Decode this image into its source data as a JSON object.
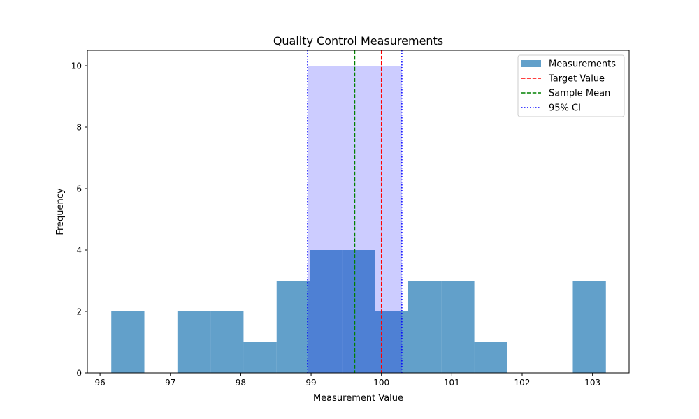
{
  "chart_data": {
    "type": "bar",
    "title": "Quality Control Measurements",
    "xlabel": "Measurement Value",
    "ylabel": "Frequency",
    "xlim": [
      95.82,
      103.52
    ],
    "ylim": [
      0,
      10.5
    ],
    "xticks": [
      96,
      97,
      98,
      99,
      100,
      101,
      102,
      103
    ],
    "yticks": [
      0,
      2,
      4,
      6,
      8,
      10
    ],
    "series": [
      {
        "name": "Measurements",
        "color": "#1f77b4",
        "opacity": 0.7,
        "bins": [
          {
            "x0": 96.16,
            "x1": 96.63,
            "count": 2
          },
          {
            "x0": 96.63,
            "x1": 97.1,
            "count": 0
          },
          {
            "x0": 97.1,
            "x1": 97.57,
            "count": 2
          },
          {
            "x0": 97.57,
            "x1": 98.04,
            "count": 2
          },
          {
            "x0": 98.04,
            "x1": 98.51,
            "count": 1
          },
          {
            "x0": 98.51,
            "x1": 98.98,
            "count": 3
          },
          {
            "x0": 98.98,
            "x1": 99.44,
            "count": 4
          },
          {
            "x0": 99.44,
            "x1": 99.91,
            "count": 4
          },
          {
            "x0": 99.91,
            "x1": 100.38,
            "count": 2
          },
          {
            "x0": 100.38,
            "x1": 100.85,
            "count": 3
          },
          {
            "x0": 100.85,
            "x1": 101.32,
            "count": 3
          },
          {
            "x0": 101.32,
            "x1": 101.79,
            "count": 1
          },
          {
            "x0": 101.79,
            "x1": 102.26,
            "count": 0
          },
          {
            "x0": 102.26,
            "x1": 102.72,
            "count": 0
          },
          {
            "x0": 102.72,
            "x1": 103.19,
            "count": 3
          }
        ]
      }
    ],
    "ci_band": {
      "x0": 98.95,
      "x1": 100.29,
      "height": 10,
      "color": "#0000ff",
      "opacity": 0.2
    },
    "reference_lines": [
      {
        "name": "Target Value",
        "x": 100.0,
        "color": "#ff0000",
        "style": "dashed"
      },
      {
        "name": "Sample Mean",
        "x": 99.62,
        "color": "#008000",
        "style": "dashed"
      },
      {
        "name": "95% CI",
        "x": 98.95,
        "color": "#0000ff",
        "style": "dotted"
      },
      {
        "name": "95% CI",
        "x": 100.29,
        "color": "#0000ff",
        "style": "dotted"
      }
    ],
    "legend": {
      "position": "top-right",
      "entries": [
        {
          "label": "Measurements",
          "kind": "patch",
          "color": "#1f77b4"
        },
        {
          "label": "Target Value",
          "kind": "line",
          "color": "#ff0000",
          "style": "dashed"
        },
        {
          "label": "Sample Mean",
          "kind": "line",
          "color": "#008000",
          "style": "dashed"
        },
        {
          "label": "95% CI",
          "kind": "line",
          "color": "#0000ff",
          "style": "dotted"
        }
      ]
    },
    "grid": false
  }
}
